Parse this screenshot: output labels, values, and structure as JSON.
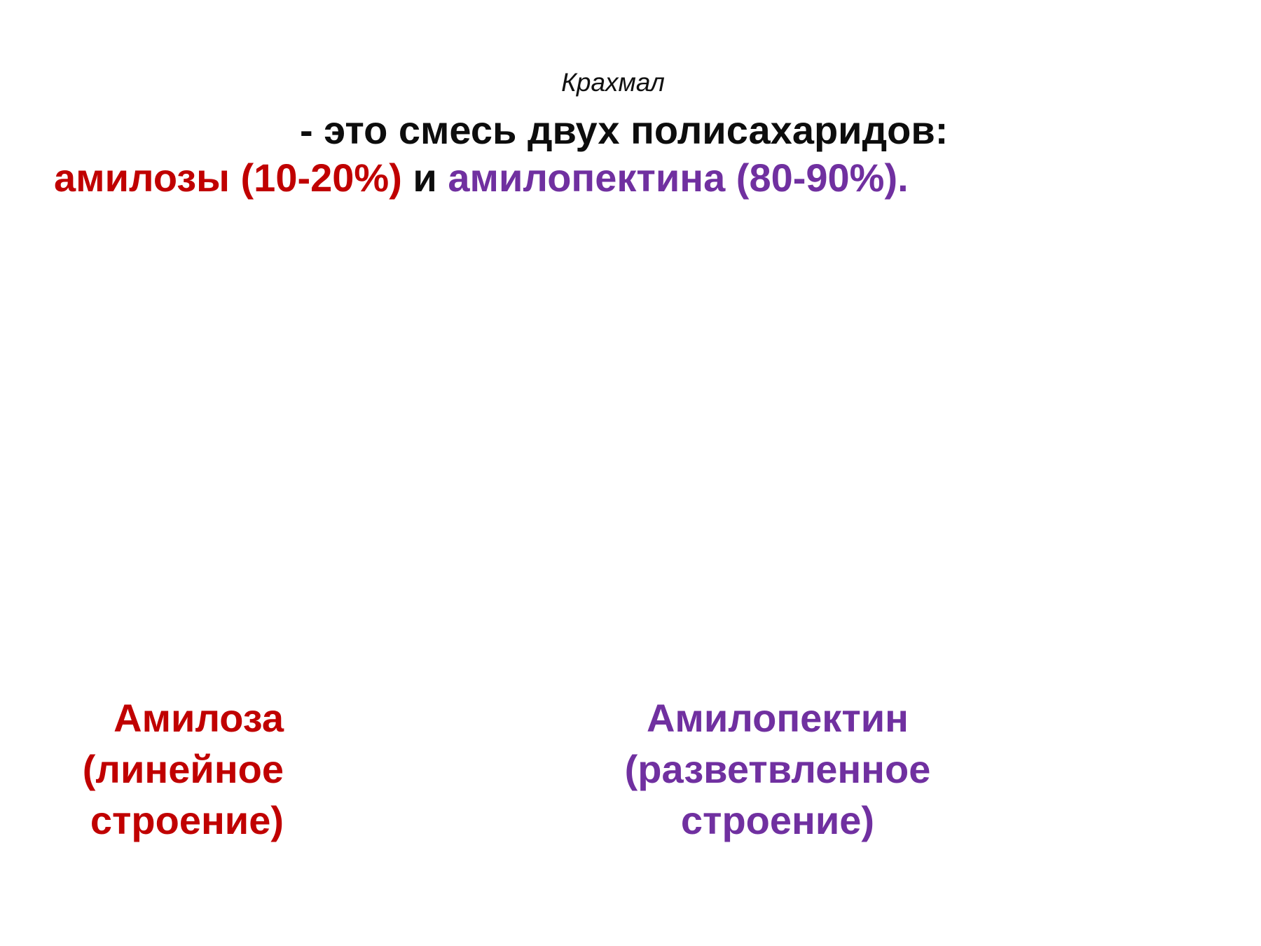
{
  "colors": {
    "text": "#0d0d0d",
    "amylose": "#c00000",
    "amylopectin": "#7030a0"
  },
  "slide": {
    "title": "Крахмал",
    "subtitle": "- это смесь двух полисахаридов:",
    "composition": {
      "amylose": "амилозы (10-20%)",
      "conjunction": " и ",
      "amylopectin": "амилопектина (80-90%)",
      "period": "."
    },
    "amylose_label": {
      "name": "Амилоза",
      "line2": "(линейное",
      "line3": "строение)"
    },
    "amylopectin_label": {
      "name": "Амилопектин",
      "line2": "(разветвленное",
      "line3": "строение)"
    }
  }
}
